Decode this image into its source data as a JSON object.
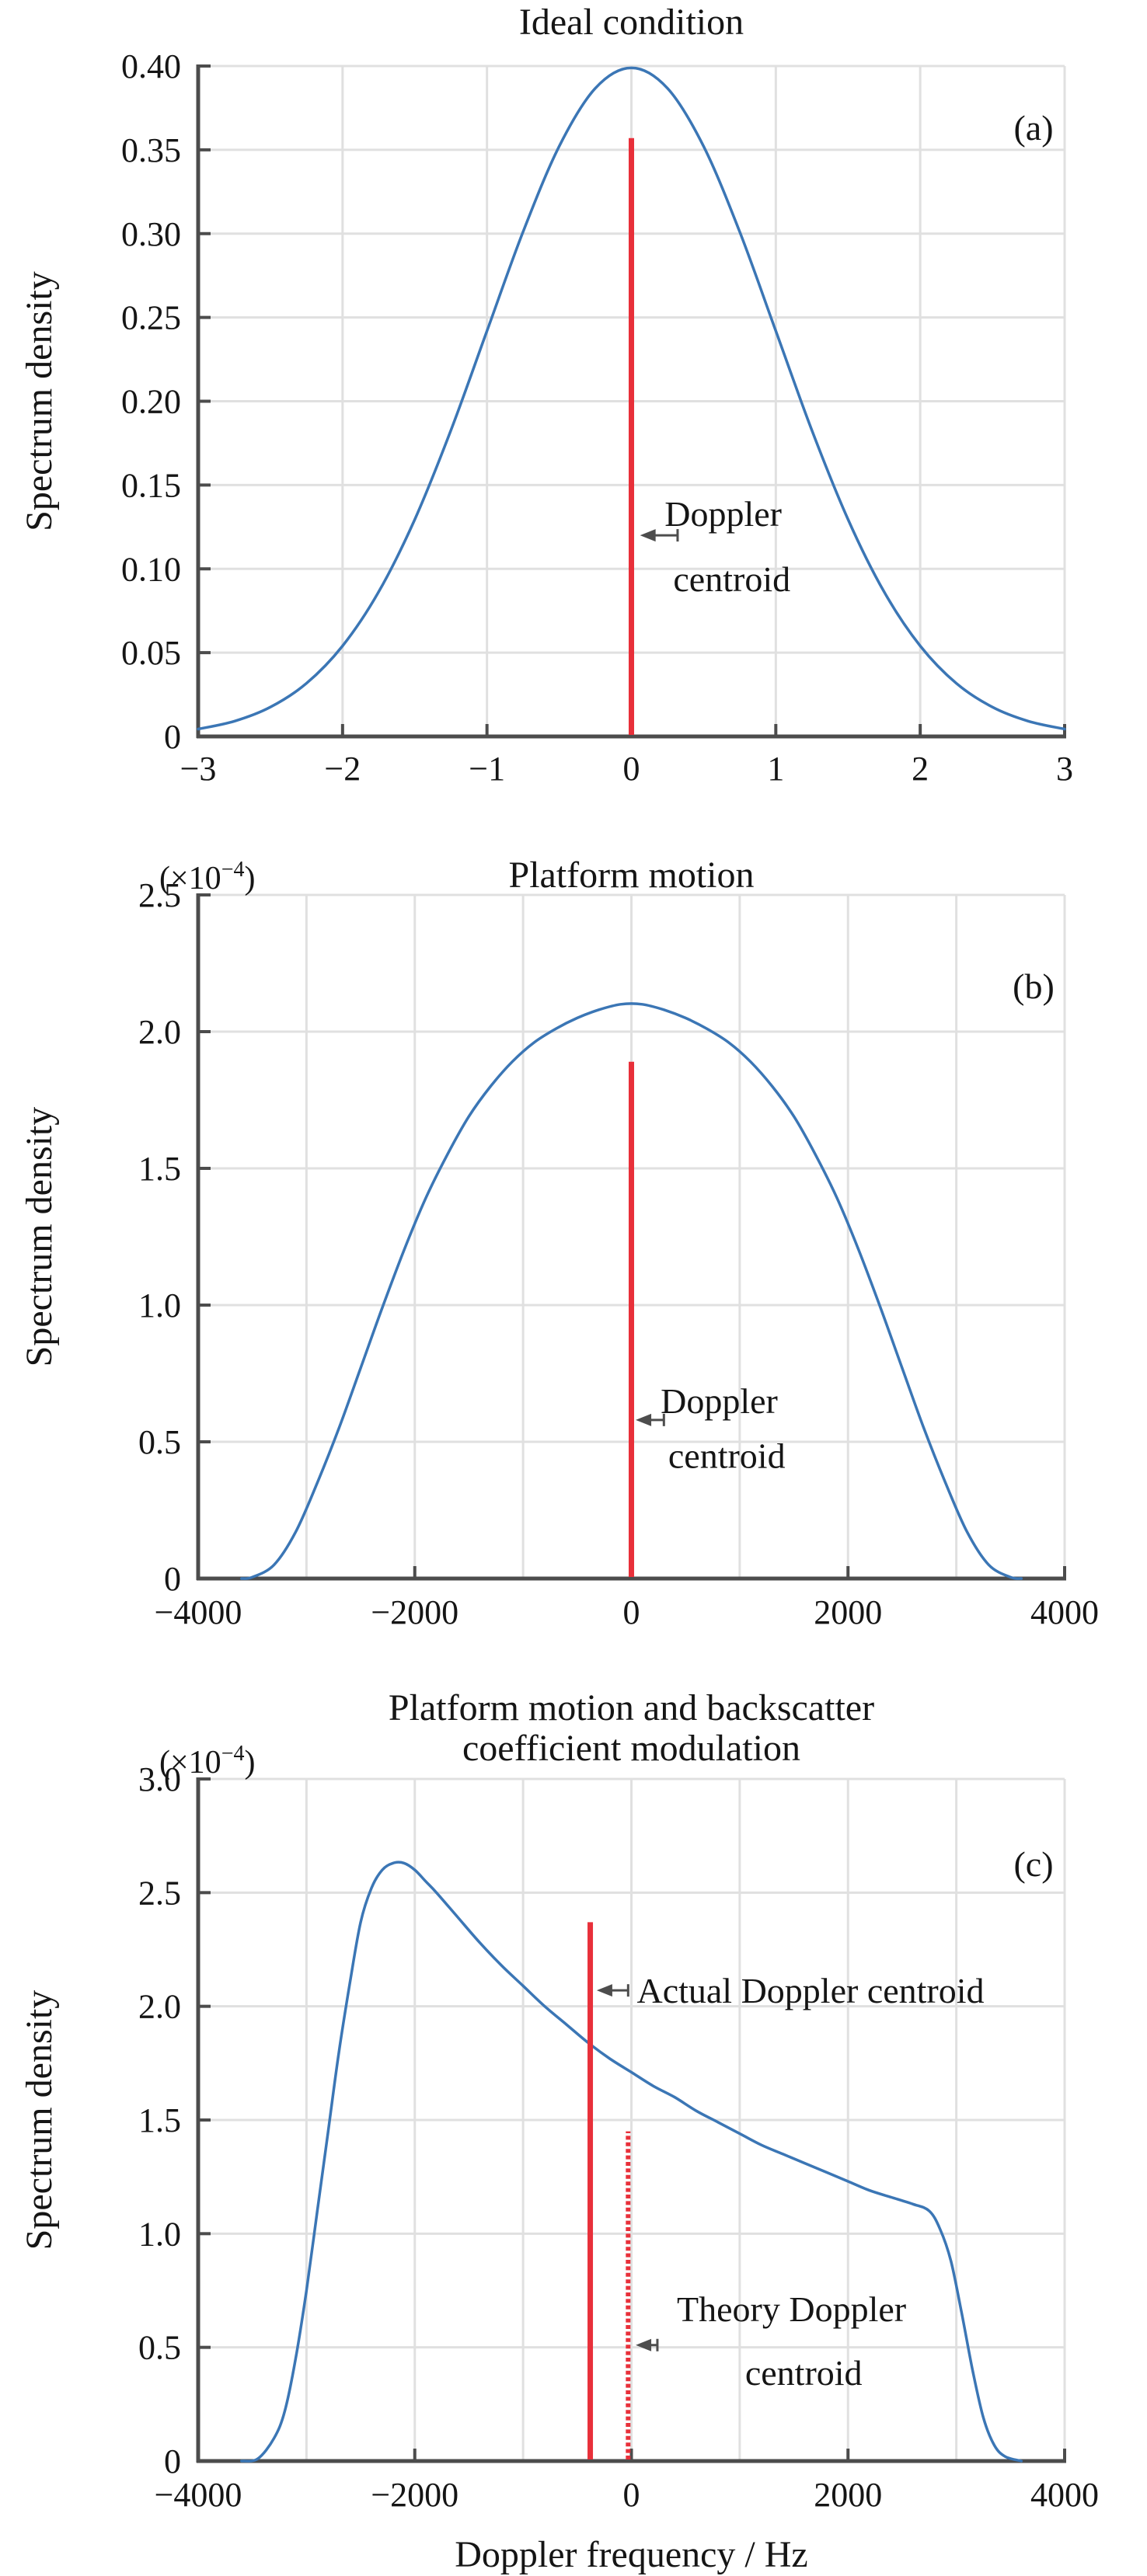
{
  "page": {
    "background": "#ffffff"
  },
  "colors": {
    "curve": "#3b76b5",
    "centroid_red": "#e8303a",
    "grid": "#e0e0e0",
    "axis": "#4c4c4c",
    "text": "#151515",
    "arrow": "#4d4d4d"
  },
  "chart_data": [
    {
      "panel_label": "(a)",
      "type": "line",
      "title_lines": [
        "Ideal condition"
      ],
      "ylabel": "Spectrum density",
      "xlabel": null,
      "scale_label": null,
      "xlim": [
        -3,
        3
      ],
      "ylim": [
        0,
        0.4
      ],
      "x_grid_step": 1,
      "y_grid_step": 0.05,
      "grid": true,
      "x_ticks": [
        {
          "v": -3,
          "label": "−3"
        },
        {
          "v": -2,
          "label": "−2"
        },
        {
          "v": -1,
          "label": "−1"
        },
        {
          "v": 0,
          "label": "0"
        },
        {
          "v": 1,
          "label": "1"
        },
        {
          "v": 2,
          "label": "2"
        },
        {
          "v": 3,
          "label": "3"
        }
      ],
      "y_ticks": [
        {
          "v": 0,
          "label": "0"
        },
        {
          "v": 0.05,
          "label": "0.05"
        },
        {
          "v": 0.1,
          "label": "0.10"
        },
        {
          "v": 0.15,
          "label": "0.15"
        },
        {
          "v": 0.2,
          "label": "0.20"
        },
        {
          "v": 0.25,
          "label": "0.25"
        },
        {
          "v": 0.3,
          "label": "0.30"
        },
        {
          "v": 0.35,
          "label": "0.35"
        },
        {
          "v": 0.4,
          "label": "0.40"
        }
      ],
      "series": [
        {
          "name": "spectrum-density",
          "points": [
            [
              -3,
              0.0044
            ],
            [
              -2.75,
              0.0091
            ],
            [
              -2.5,
              0.0175
            ],
            [
              -2.25,
              0.0317
            ],
            [
              -2,
              0.054
            ],
            [
              -1.75,
              0.0863
            ],
            [
              -1.5,
              0.1295
            ],
            [
              -1.25,
              0.1826
            ],
            [
              -1,
              0.242
            ],
            [
              -0.75,
              0.3011
            ],
            [
              -0.5,
              0.3521
            ],
            [
              -0.25,
              0.3867
            ],
            [
              0,
              0.3989
            ],
            [
              0.25,
              0.3867
            ],
            [
              0.5,
              0.3521
            ],
            [
              0.75,
              0.3011
            ],
            [
              1,
              0.242
            ],
            [
              1.25,
              0.1826
            ],
            [
              1.5,
              0.1295
            ],
            [
              1.75,
              0.0863
            ],
            [
              2,
              0.054
            ],
            [
              2.25,
              0.0317
            ],
            [
              2.5,
              0.0175
            ],
            [
              2.75,
              0.0091
            ],
            [
              3,
              0.0044
            ]
          ]
        }
      ],
      "centroid_lines": [
        {
          "name": "doppler-centroid",
          "style": "solid",
          "x": 0,
          "y_top": 0.357
        }
      ],
      "callouts": [
        {
          "arrow": {
            "y": 0.12,
            "tip_x": 0.06,
            "tail_x": 0.32
          },
          "lines": [
            {
              "text": "Doppler",
              "x": 0.23,
              "y": 0.133
            },
            {
              "text": "centroid",
              "x": 0.29,
              "y": 0.094
            }
          ]
        }
      ]
    },
    {
      "panel_label": "(b)",
      "type": "line",
      "title_lines": [
        "Platform motion"
      ],
      "ylabel": "Spectrum density",
      "xlabel": null,
      "scale_label": {
        "base": "(×10",
        "exp": "−4",
        "end": ")"
      },
      "xlim": [
        -4000,
        4000
      ],
      "ylim": [
        0,
        2.5
      ],
      "x_grid_step": 1000,
      "y_grid_step": 0.5,
      "grid": true,
      "x_ticks": [
        {
          "v": -4000,
          "label": "−4000"
        },
        {
          "v": -2000,
          "label": "−2000"
        },
        {
          "v": 0,
          "label": "0"
        },
        {
          "v": 2000,
          "label": "2000"
        },
        {
          "v": 4000,
          "label": "4000"
        }
      ],
      "y_ticks": [
        {
          "v": 0,
          "label": "0"
        },
        {
          "v": 0.5,
          "label": "0.5"
        },
        {
          "v": 1.0,
          "label": "1.0"
        },
        {
          "v": 1.5,
          "label": "1.5"
        },
        {
          "v": 2.0,
          "label": "2.0"
        },
        {
          "v": 2.5,
          "label": "2.5"
        }
      ],
      "series": [
        {
          "name": "spectrum-density",
          "points": [
            [
              -3600,
              0
            ],
            [
              -3500,
              0.005
            ],
            [
              -3300,
              0.05
            ],
            [
              -3100,
              0.17
            ],
            [
              -2900,
              0.35
            ],
            [
              -2700,
              0.55
            ],
            [
              -2500,
              0.77
            ],
            [
              -2300,
              0.99
            ],
            [
              -2100,
              1.2
            ],
            [
              -1900,
              1.39
            ],
            [
              -1700,
              1.55
            ],
            [
              -1500,
              1.69
            ],
            [
              -1300,
              1.8
            ],
            [
              -1100,
              1.89
            ],
            [
              -900,
              1.96
            ],
            [
              -700,
              2.01
            ],
            [
              -500,
              2.05
            ],
            [
              -300,
              2.08
            ],
            [
              -100,
              2.1
            ],
            [
              100,
              2.1
            ],
            [
              300,
              2.08
            ],
            [
              500,
              2.05
            ],
            [
              700,
              2.01
            ],
            [
              900,
              1.96
            ],
            [
              1100,
              1.89
            ],
            [
              1300,
              1.8
            ],
            [
              1500,
              1.69
            ],
            [
              1700,
              1.55
            ],
            [
              1900,
              1.39
            ],
            [
              2100,
              1.2
            ],
            [
              2300,
              0.99
            ],
            [
              2500,
              0.77
            ],
            [
              2700,
              0.55
            ],
            [
              2900,
              0.35
            ],
            [
              3100,
              0.17
            ],
            [
              3300,
              0.05
            ],
            [
              3500,
              0.005
            ],
            [
              3600,
              0
            ]
          ]
        }
      ],
      "centroid_lines": [
        {
          "name": "doppler-centroid",
          "style": "solid",
          "x": 0,
          "y_top": 1.89
        }
      ],
      "callouts": [
        {
          "arrow": {
            "y": 0.58,
            "tip_x": 40,
            "tail_x": 300
          },
          "lines": [
            {
              "text": "Doppler",
              "x": 270,
              "y": 0.65
            },
            {
              "text": "centroid",
              "x": 340,
              "y": 0.45
            }
          ]
        }
      ]
    },
    {
      "panel_label": "(c)",
      "type": "line",
      "title_lines": [
        "Platform motion and backscatter",
        "coefficient modulation"
      ],
      "ylabel": "Spectrum density",
      "xlabel": "Doppler frequency / Hz",
      "scale_label": {
        "base": "(×10",
        "exp": "−4",
        "end": ")"
      },
      "xlim": [
        -4000,
        4000
      ],
      "ylim": [
        0,
        3.0
      ],
      "x_grid_step": 1000,
      "y_grid_step": 0.5,
      "grid": true,
      "x_ticks": [
        {
          "v": -4000,
          "label": "−4000"
        },
        {
          "v": -2000,
          "label": "−2000"
        },
        {
          "v": 0,
          "label": "0"
        },
        {
          "v": 2000,
          "label": "2000"
        },
        {
          "v": 4000,
          "label": "4000"
        }
      ],
      "y_ticks": [
        {
          "v": 0,
          "label": "0"
        },
        {
          "v": 0.5,
          "label": "0.5"
        },
        {
          "v": 1.0,
          "label": "1.0"
        },
        {
          "v": 1.5,
          "label": "1.5"
        },
        {
          "v": 2.0,
          "label": "2.0"
        },
        {
          "v": 2.5,
          "label": "2.5"
        },
        {
          "v": 3.0,
          "label": "3.0"
        }
      ],
      "series": [
        {
          "name": "spectrum-density",
          "points": [
            [
              -3600,
              0
            ],
            [
              -3450,
              0.01
            ],
            [
              -3300,
              0.1
            ],
            [
              -3200,
              0.22
            ],
            [
              -3100,
              0.45
            ],
            [
              -3000,
              0.75
            ],
            [
              -2900,
              1.1
            ],
            [
              -2800,
              1.45
            ],
            [
              -2700,
              1.8
            ],
            [
              -2600,
              2.1
            ],
            [
              -2500,
              2.37
            ],
            [
              -2400,
              2.52
            ],
            [
              -2300,
              2.6
            ],
            [
              -2200,
              2.63
            ],
            [
              -2100,
              2.63
            ],
            [
              -2000,
              2.6
            ],
            [
              -1900,
              2.55
            ],
            [
              -1800,
              2.5
            ],
            [
              -1600,
              2.39
            ],
            [
              -1400,
              2.28
            ],
            [
              -1200,
              2.18
            ],
            [
              -1000,
              2.09
            ],
            [
              -800,
              2.0
            ],
            [
              -600,
              1.92
            ],
            [
              -400,
              1.84
            ],
            [
              -200,
              1.77
            ],
            [
              0,
              1.71
            ],
            [
              200,
              1.65
            ],
            [
              400,
              1.6
            ],
            [
              600,
              1.54
            ],
            [
              800,
              1.49
            ],
            [
              1000,
              1.44
            ],
            [
              1200,
              1.39
            ],
            [
              1400,
              1.35
            ],
            [
              1600,
              1.31
            ],
            [
              1800,
              1.27
            ],
            [
              2000,
              1.23
            ],
            [
              2200,
              1.19
            ],
            [
              2400,
              1.16
            ],
            [
              2600,
              1.13
            ],
            [
              2750,
              1.1
            ],
            [
              2850,
              1.02
            ],
            [
              2950,
              0.88
            ],
            [
              3050,
              0.65
            ],
            [
              3150,
              0.4
            ],
            [
              3250,
              0.19
            ],
            [
              3350,
              0.07
            ],
            [
              3450,
              0.02
            ],
            [
              3600,
              0
            ]
          ]
        }
      ],
      "centroid_lines": [
        {
          "name": "actual-doppler-centroid",
          "style": "solid",
          "x": -380,
          "y_top": 2.37
        },
        {
          "name": "theory-doppler-centroid",
          "style": "dotted",
          "x": -30,
          "y_top": 1.45
        }
      ],
      "callouts": [
        {
          "arrow": {
            "y": 2.07,
            "tip_x": -320,
            "tail_x": -30
          },
          "lines": [
            {
              "text": "Actual Doppler centroid",
              "x": 50,
              "y": 2.07
            }
          ]
        },
        {
          "arrow": {
            "y": 0.51,
            "tip_x": 40,
            "tail_x": 240
          },
          "lines": [
            {
              "text": "Theory Doppler",
              "x": 420,
              "y": 0.67
            },
            {
              "text": "centroid",
              "x": 1050,
              "y": 0.39
            }
          ]
        }
      ]
    }
  ]
}
